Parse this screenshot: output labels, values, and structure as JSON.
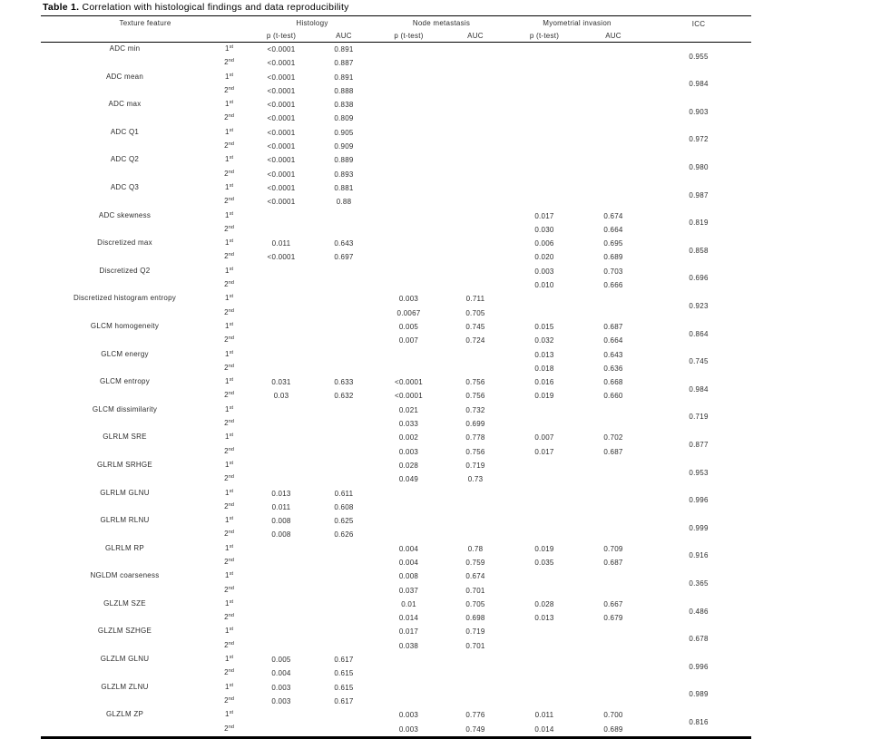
{
  "title": {
    "label": "Table 1.",
    "text": " Correlation with histological findings and data reproducibility"
  },
  "colors": {
    "background": "#ffffff",
    "text": "#2d2d2d",
    "rule": "#000000"
  },
  "header": {
    "texture_feature": "Texture feature",
    "groups": [
      {
        "label": "Histology",
        "sub": [
          "p (t-test)",
          "AUC"
        ]
      },
      {
        "label": "Node metastasis",
        "sub": [
          "p (t-test)",
          "AUC"
        ]
      },
      {
        "label": "Myometrial invasion",
        "sub": [
          "p (t-test)",
          "AUC"
        ]
      }
    ],
    "icc": "ICC"
  },
  "measurements": [
    {
      "num": "1",
      "sup": "st"
    },
    {
      "num": "2",
      "sup": "nd"
    }
  ],
  "rows": [
    {
      "feature": "ADC min",
      "m1": [
        "<0.0001",
        "0.891",
        "",
        "",
        "",
        ""
      ],
      "m2": [
        "<0.0001",
        "0.887",
        "",
        "",
        "",
        ""
      ],
      "icc": "0.955"
    },
    {
      "feature": "ADC mean",
      "m1": [
        "<0.0001",
        "0.891",
        "",
        "",
        "",
        ""
      ],
      "m2": [
        "<0.0001",
        "0.888",
        "",
        "",
        "",
        ""
      ],
      "icc": "0.984"
    },
    {
      "feature": "ADC max",
      "m1": [
        "<0.0001",
        "0.838",
        "",
        "",
        "",
        ""
      ],
      "m2": [
        "<0.0001",
        "0.809",
        "",
        "",
        "",
        ""
      ],
      "icc": "0.903"
    },
    {
      "feature": "ADC Q1",
      "m1": [
        "<0.0001",
        "0.905",
        "",
        "",
        "",
        ""
      ],
      "m2": [
        "<0.0001",
        "0.909",
        "",
        "",
        "",
        ""
      ],
      "icc": "0.972"
    },
    {
      "feature": "ADC Q2",
      "m1": [
        "<0.0001",
        "0.889",
        "",
        "",
        "",
        ""
      ],
      "m2": [
        "<0.0001",
        "0.893",
        "",
        "",
        "",
        ""
      ],
      "icc": "0.980"
    },
    {
      "feature": "ADC Q3",
      "m1": [
        "<0.0001",
        "0.881",
        "",
        "",
        "",
        ""
      ],
      "m2": [
        "<0.0001",
        "0.88",
        "",
        "",
        "",
        ""
      ],
      "icc": "0.987"
    },
    {
      "feature": "ADC skewness",
      "m1": [
        "",
        "",
        "",
        "",
        "0.017",
        "0.674"
      ],
      "m2": [
        "",
        "",
        "",
        "",
        "0.030",
        "0.664"
      ],
      "icc": "0.819"
    },
    {
      "feature": "Discretized max",
      "m1": [
        "0.011",
        "0.643",
        "",
        "",
        "0.006",
        "0.695"
      ],
      "m2": [
        "<0.0001",
        "0.697",
        "",
        "",
        "0.020",
        "0.689"
      ],
      "icc": "0.858"
    },
    {
      "feature": "Discretized Q2",
      "m1": [
        "",
        "",
        "",
        "",
        "0.003",
        "0.703"
      ],
      "m2": [
        "",
        "",
        "",
        "",
        "0.010",
        "0.666"
      ],
      "icc": "0.696"
    },
    {
      "feature": "Discretized histogram entropy",
      "m1": [
        "",
        "",
        "0.003",
        "0.711",
        "",
        ""
      ],
      "m2": [
        "",
        "",
        "0.0067",
        "0.705",
        "",
        ""
      ],
      "icc": "0.923"
    },
    {
      "feature": "GLCM homogeneity",
      "m1": [
        "",
        "",
        "0.005",
        "0.745",
        "0.015",
        "0.687"
      ],
      "m2": [
        "",
        "",
        "0.007",
        "0.724",
        "0.032",
        "0.664"
      ],
      "icc": "0.864"
    },
    {
      "feature": "GLCM energy",
      "m1": [
        "",
        "",
        "",
        "",
        "0.013",
        "0.643"
      ],
      "m2": [
        "",
        "",
        "",
        "",
        "0.018",
        "0.636"
      ],
      "icc": "0.745"
    },
    {
      "feature": "GLCM entropy",
      "m1": [
        "0.031",
        "0.633",
        "<0.0001",
        "0.756",
        "0.016",
        "0.668"
      ],
      "m2": [
        "0.03",
        "0.632",
        "<0.0001",
        "0.756",
        "0.019",
        "0.660"
      ],
      "icc": "0.984"
    },
    {
      "feature": "GLCM dissimilarity",
      "m1": [
        "",
        "",
        "0.021",
        "0.732",
        "",
        ""
      ],
      "m2": [
        "",
        "",
        "0.033",
        "0.699",
        "",
        ""
      ],
      "icc": "0.719"
    },
    {
      "feature": "GLRLM SRE",
      "m1": [
        "",
        "",
        "0.002",
        "0.778",
        "0.007",
        "0.702"
      ],
      "m2": [
        "",
        "",
        "0.003",
        "0.756",
        "0.017",
        "0.687"
      ],
      "icc": "0.877"
    },
    {
      "feature": "GLRLM SRHGE",
      "m1": [
        "",
        "",
        "0.028",
        "0.719",
        "",
        ""
      ],
      "m2": [
        "",
        "",
        "0.049",
        "0.73",
        "",
        ""
      ],
      "icc": "0.953"
    },
    {
      "feature": "GLRLM GLNU",
      "m1": [
        "0.013",
        "0.611",
        "",
        "",
        "",
        ""
      ],
      "m2": [
        "0.011",
        "0.608",
        "",
        "",
        "",
        ""
      ],
      "icc": "0.996"
    },
    {
      "feature": "GLRLM RLNU",
      "m1": [
        "0.008",
        "0.625",
        "",
        "",
        "",
        ""
      ],
      "m2": [
        "0.008",
        "0.626",
        "",
        "",
        "",
        ""
      ],
      "icc": "0.999"
    },
    {
      "feature": "GLRLM RP",
      "m1": [
        "",
        "",
        "0.004",
        "0.78",
        "0.019",
        "0.709"
      ],
      "m2": [
        "",
        "",
        "0.004",
        "0.759",
        "0.035",
        "0.687"
      ],
      "icc": "0.916"
    },
    {
      "feature": "NGLDM coarseness",
      "m1": [
        "",
        "",
        "0.008",
        "0.674",
        "",
        ""
      ],
      "m2": [
        "",
        "",
        "0.037",
        "0.701",
        "",
        ""
      ],
      "icc": "0.365"
    },
    {
      "feature": "GLZLM SZE",
      "m1": [
        "",
        "",
        "0.01",
        "0.705",
        "0.028",
        "0.667"
      ],
      "m2": [
        "",
        "",
        "0.014",
        "0.698",
        "0.013",
        "0.679"
      ],
      "icc": "0.486"
    },
    {
      "feature": "GLZLM SZHGE",
      "m1": [
        "",
        "",
        "0.017",
        "0.719",
        "",
        ""
      ],
      "m2": [
        "",
        "",
        "0.038",
        "0.701",
        "",
        ""
      ],
      "icc": "0.678"
    },
    {
      "feature": "GLZLM GLNU",
      "m1": [
        "0.005",
        "0.617",
        "",
        "",
        "",
        ""
      ],
      "m2": [
        "0.004",
        "0.615",
        "",
        "",
        "",
        ""
      ],
      "icc": "0.996"
    },
    {
      "feature": "GLZLM ZLNU",
      "m1": [
        "0.003",
        "0.615",
        "",
        "",
        "",
        ""
      ],
      "m2": [
        "0.003",
        "0.617",
        "",
        "",
        "",
        ""
      ],
      "icc": "0.989"
    },
    {
      "feature": "GLZLM ZP",
      "m1": [
        "",
        "",
        "0.003",
        "0.776",
        "0.011",
        "0.700"
      ],
      "m2": [
        "",
        "",
        "0.003",
        "0.749",
        "0.014",
        "0.689"
      ],
      "icc": "0.816"
    }
  ]
}
